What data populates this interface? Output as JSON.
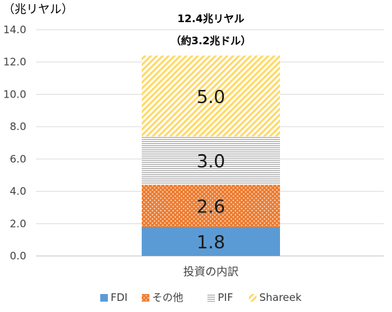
{
  "chart_data": {
    "type": "bar",
    "stacked": true,
    "unit_label": "（兆リヤル）",
    "title_line1": "12.4兆リヤル",
    "title_line2": "（約3.2兆ドル）",
    "categories": [
      "投資の内訳"
    ],
    "ylim": [
      0,
      14
    ],
    "yticks": [
      "0.0",
      "2.0",
      "4.0",
      "6.0",
      "8.0",
      "10.0",
      "12.0",
      "14.0"
    ],
    "ytick_values": [
      0,
      2,
      4,
      6,
      8,
      10,
      12,
      14
    ],
    "grid": true,
    "legend_position": "bottom",
    "series": [
      {
        "name": "FDI",
        "values": [
          1.8
        ],
        "label": "1.8",
        "color": "#5b9bd5",
        "pattern": "solid"
      },
      {
        "name": "その他",
        "values": [
          2.6
        ],
        "label": "2.6",
        "color": "#ed7d31",
        "pattern": "dots"
      },
      {
        "name": "PIF",
        "values": [
          3.0
        ],
        "label": "3.0",
        "color": "#a5a5a5",
        "pattern": "horizontal-lines"
      },
      {
        "name": "Shareek",
        "values": [
          5.0
        ],
        "label": "5.0",
        "color": "#ffd966",
        "pattern": "diagonal-lines"
      }
    ]
  }
}
